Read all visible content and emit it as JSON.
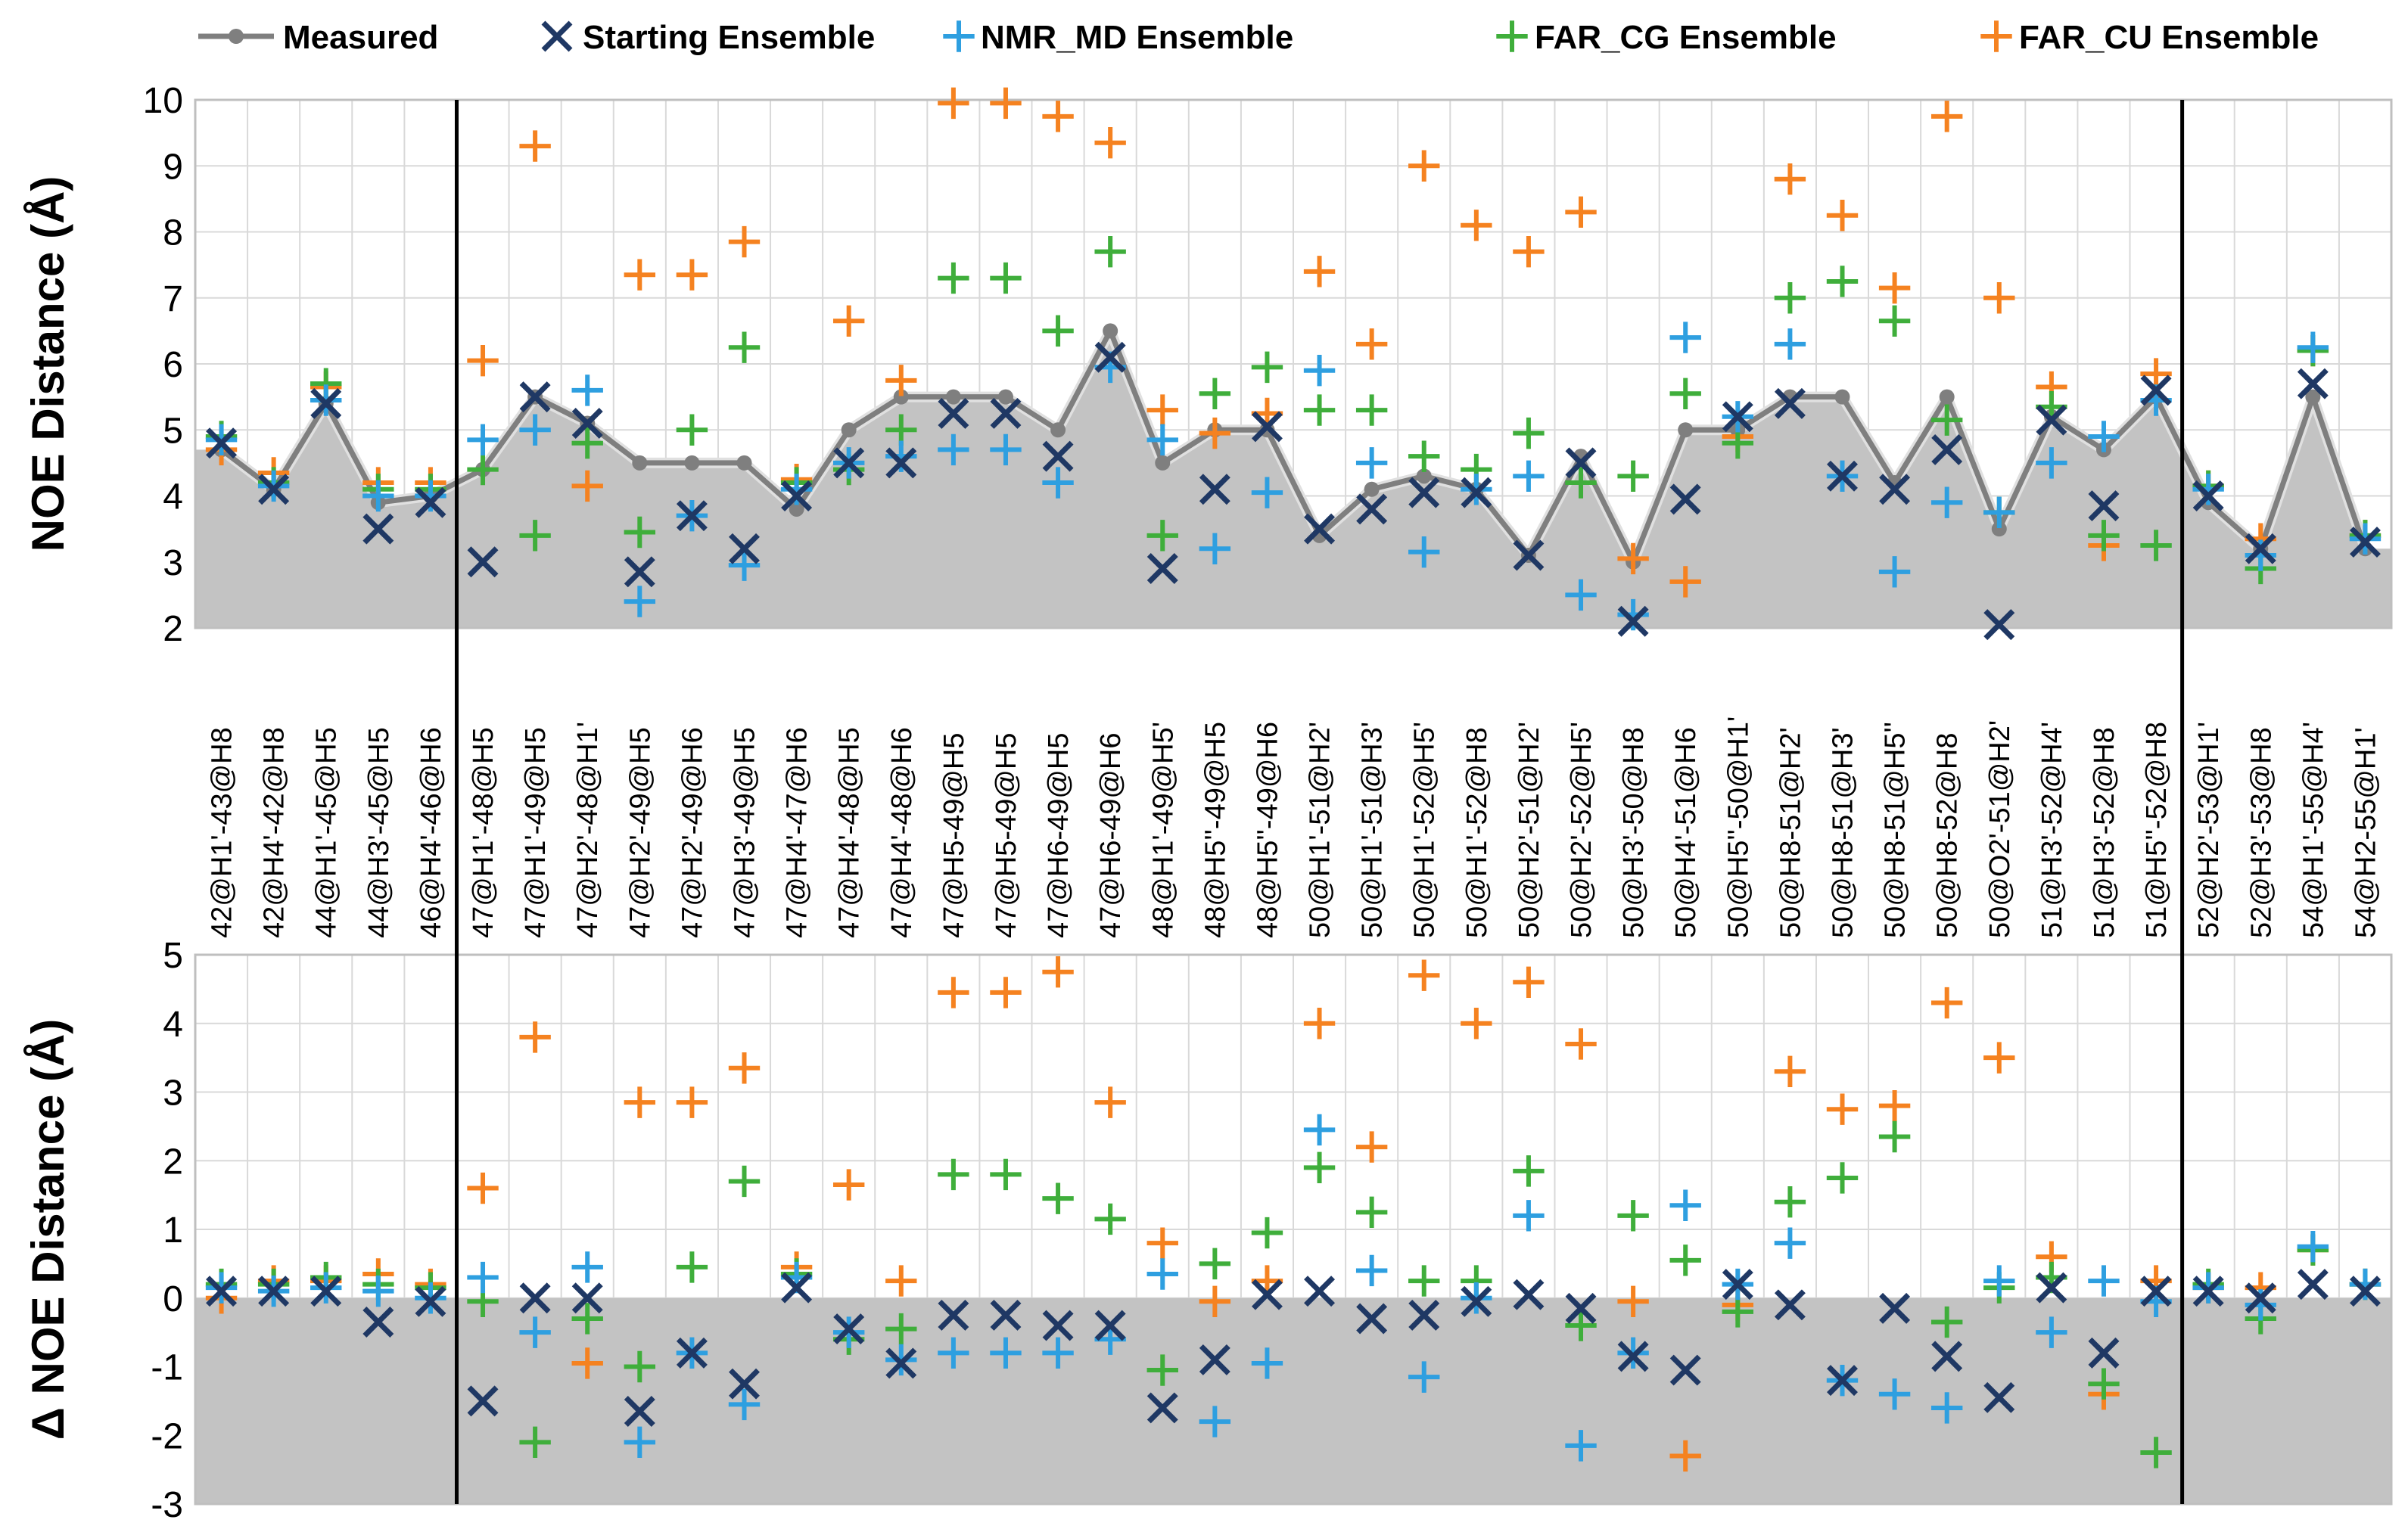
{
  "legend": [
    {
      "key": "measured",
      "label": "Measured",
      "marker": "line",
      "color": "#7f7f7f"
    },
    {
      "key": "starting",
      "label": "Starting Ensemble",
      "marker": "x",
      "color": "#1f3864"
    },
    {
      "key": "nmr_md",
      "label": "NMR_MD Ensemble",
      "marker": "+",
      "color": "#2e9fe0"
    },
    {
      "key": "far_cg",
      "label": "FAR_CG Ensemble",
      "marker": "+",
      "color": "#3fae3b"
    },
    {
      "key": "far_cu",
      "label": "FAR_CU Ensemble",
      "marker": "+",
      "color": "#f58220"
    }
  ],
  "chart_data": [
    {
      "type": "line",
      "panel": "top",
      "ylabel": "NOE Distance (Å)",
      "ylim": [
        2,
        10
      ],
      "yticks": [
        2,
        3,
        4,
        5,
        6,
        7,
        8,
        9,
        10
      ],
      "grid": true,
      "categories": [
        "42@H1'-43@H8",
        "42@H4'-42@H8",
        "44@H1'-45@H5",
        "44@H3'-45@H5",
        "46@H4'-46@H6",
        "47@H1'-48@H5",
        "47@H1'-49@H5",
        "47@H2'-48@H1'",
        "47@H2'-49@H5",
        "47@H2'-49@H6",
        "47@H3'-49@H5",
        "47@H4'-47@H6",
        "47@H4'-48@H5",
        "47@H4'-48@H6",
        "47@H5-49@H5",
        "47@H5-49@H5",
        "47@H6-49@H5",
        "47@H6-49@H6",
        "48@H1'-49@H5'",
        "48@H5''-49@H5",
        "48@H5''-49@H6",
        "50@H1'-51@H2'",
        "50@H1'-51@H3'",
        "50@H1'-52@H5'",
        "50@H1'-52@H8",
        "50@H2'-51@H2'",
        "50@H2'-52@H5'",
        "50@H3'-50@H8",
        "50@H4'-51@H6",
        "50@H5''-50@H1'",
        "50@H8-51@H2'",
        "50@H8-51@H3'",
        "50@H8-51@H5''",
        "50@H8-52@H8",
        "50@O2'-51@H2'",
        "51@H3'-52@H4'",
        "51@H3'-52@H8",
        "51@H5''-52@H8",
        "52@H2'-53@H1'",
        "52@H3'-53@H8",
        "54@H1'-55@H4'",
        "54@H2-55@H1'"
      ],
      "dividers_after_index": [
        4,
        37
      ],
      "series": [
        {
          "name": "Measured",
          "values": [
            4.7,
            4.1,
            5.4,
            3.9,
            4.0,
            4.4,
            5.5,
            5.1,
            4.5,
            4.5,
            4.5,
            3.8,
            5.0,
            5.5,
            5.5,
            5.5,
            5.0,
            6.5,
            4.5,
            5.0,
            5.0,
            3.4,
            4.1,
            4.3,
            4.1,
            3.1,
            4.6,
            3.0,
            5.0,
            5.0,
            5.5,
            5.5,
            4.2,
            5.5,
            3.5,
            5.2,
            4.7,
            5.5,
            3.9,
            3.2,
            5.5,
            3.2
          ]
        },
        {
          "name": "Starting Ensemble",
          "values": [
            4.8,
            4.1,
            5.4,
            3.5,
            3.9,
            3.0,
            5.5,
            5.1,
            2.85,
            3.7,
            3.2,
            4.0,
            4.5,
            4.5,
            5.25,
            5.25,
            4.6,
            6.1,
            2.9,
            4.1,
            5.05,
            3.5,
            3.8,
            4.05,
            4.05,
            3.1,
            4.5,
            2.1,
            3.95,
            5.2,
            5.4,
            4.3,
            4.1,
            4.7,
            2.05,
            5.15,
            3.85,
            5.6,
            4.0,
            3.2,
            5.7,
            3.3
          ]
        },
        {
          "name": "NMR_MD Ensemble",
          "values": [
            4.85,
            4.15,
            5.45,
            4.0,
            4.0,
            4.85,
            5.0,
            5.6,
            2.4,
            3.7,
            2.95,
            4.1,
            4.5,
            4.6,
            4.7,
            4.7,
            4.2,
            5.95,
            4.85,
            3.2,
            4.05,
            5.9,
            4.5,
            3.15,
            4.1,
            4.3,
            2.5,
            2.2,
            6.4,
            5.2,
            6.3,
            4.3,
            2.85,
            3.9,
            3.75,
            4.5,
            4.9,
            5.45,
            4.1,
            3.1,
            6.25,
            3.35
          ]
        },
        {
          "name": "FAR_CG Ensemble",
          "values": [
            4.9,
            4.2,
            5.7,
            4.1,
            4.1,
            4.4,
            3.4,
            4.8,
            3.45,
            5.0,
            6.25,
            4.2,
            4.4,
            5.0,
            7.3,
            7.3,
            6.5,
            7.7,
            3.4,
            5.55,
            5.95,
            5.3,
            5.3,
            4.6,
            4.4,
            4.95,
            4.2,
            4.3,
            5.55,
            4.8,
            7.0,
            7.25,
            6.65,
            5.15,
            3.75,
            5.35,
            3.4,
            3.25,
            4.15,
            2.9,
            6.2,
            3.4
          ]
        },
        {
          "name": "FAR_CU Ensemble",
          "values": [
            4.7,
            4.35,
            5.65,
            4.2,
            4.2,
            6.05,
            9.3,
            4.15,
            7.35,
            7.35,
            7.85,
            4.25,
            6.65,
            5.75,
            9.95,
            9.95,
            9.75,
            9.35,
            5.3,
            4.95,
            5.25,
            7.4,
            6.3,
            9.0,
            8.1,
            7.7,
            8.3,
            3.05,
            2.7,
            4.9,
            8.8,
            8.25,
            7.15,
            9.75,
            7.0,
            5.65,
            3.25,
            5.85,
            4.15,
            3.35,
            6.2,
            3.4
          ]
        }
      ]
    },
    {
      "type": "line",
      "panel": "bottom",
      "ylabel": "Δ NOE Distance (Å)",
      "ylim": [
        -3,
        5
      ],
      "yticks": [
        -3,
        -2,
        -1,
        0,
        1,
        2,
        3,
        4,
        5
      ],
      "grid": true,
      "shaded_below_zero": true,
      "series": [
        {
          "name": "Starting Ensemble",
          "values": [
            0.1,
            0.1,
            0.1,
            -0.35,
            -0.05,
            -1.5,
            0.0,
            0.0,
            -1.65,
            -0.8,
            -1.25,
            0.15,
            -0.45,
            -0.95,
            -0.25,
            -0.25,
            -0.4,
            -0.4,
            -1.6,
            -0.9,
            0.05,
            0.1,
            -0.3,
            -0.25,
            -0.05,
            0.05,
            -0.15,
            -0.85,
            -1.05,
            0.2,
            -0.1,
            -1.2,
            -0.15,
            -0.85,
            -1.45,
            0.15,
            -0.8,
            0.1,
            0.1,
            0.0,
            0.2,
            0.1
          ]
        },
        {
          "name": "NMR_MD Ensemble",
          "values": [
            0.15,
            0.1,
            0.15,
            0.1,
            0.0,
            0.3,
            -0.5,
            0.45,
            -2.1,
            -0.8,
            -1.55,
            0.3,
            -0.5,
            -0.9,
            -0.8,
            -0.8,
            -0.8,
            -0.6,
            0.35,
            -1.8,
            -0.95,
            2.45,
            0.4,
            -1.15,
            0.0,
            1.2,
            -2.15,
            -0.8,
            1.35,
            0.2,
            0.8,
            -1.2,
            -1.4,
            -1.6,
            0.25,
            -0.5,
            0.25,
            -0.05,
            0.15,
            -0.1,
            0.75,
            0.2
          ]
        },
        {
          "name": "FAR_CG Ensemble",
          "values": [
            0.2,
            0.2,
            0.3,
            0.2,
            0.15,
            -0.05,
            -2.1,
            -0.3,
            -1.0,
            0.45,
            1.7,
            0.35,
            -0.6,
            -0.45,
            1.8,
            1.8,
            1.45,
            1.15,
            -1.05,
            0.5,
            0.95,
            1.9,
            1.25,
            0.25,
            0.25,
            1.85,
            -0.4,
            1.2,
            0.55,
            -0.2,
            1.4,
            1.75,
            2.35,
            -0.35,
            0.15,
            0.3,
            -1.25,
            -2.25,
            0.2,
            -0.3,
            0.7,
            0.2
          ]
        },
        {
          "name": "FAR_CU Ensemble",
          "values": [
            0.0,
            0.25,
            0.25,
            0.35,
            0.2,
            1.6,
            3.8,
            -0.95,
            2.85,
            2.85,
            3.35,
            0.45,
            1.65,
            0.25,
            4.45,
            4.45,
            4.75,
            2.85,
            0.8,
            -0.05,
            0.25,
            4.0,
            2.2,
            4.7,
            4.0,
            4.6,
            3.7,
            -0.05,
            -2.3,
            -0.1,
            3.3,
            2.75,
            2.8,
            4.3,
            3.5,
            0.6,
            -1.4,
            0.25,
            0.15,
            0.15,
            0.7,
            0.2
          ]
        }
      ]
    }
  ]
}
